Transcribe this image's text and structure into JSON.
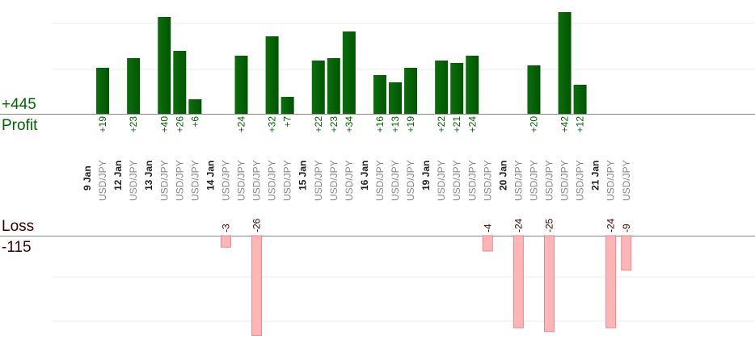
{
  "summary": {
    "profit_total": "+445",
    "profit_label": "Profit",
    "loss_label": "Loss",
    "loss_total": "-115"
  },
  "colors": {
    "profit_bar": "#0c6e0c",
    "profit_bar_dark": "#005500",
    "profit_text": "#006400",
    "loss_bar": "#ffb4b6",
    "loss_bar_edge": "#e58a8d",
    "loss_text": "#3a0000",
    "day_text": "#222222",
    "pair_text": "#888888",
    "grid": "#e8e8e8",
    "axis": "#888888"
  },
  "chart_data": {
    "type": "bar",
    "y_scale_note": "profit bars clipped at top of view; loss bars clipped at bottom",
    "ylim_profit": [
      0,
      40
    ],
    "ylim_loss": [
      -24,
      0
    ],
    "slots": [
      {
        "kind": "day",
        "label": "9 Jan"
      },
      {
        "kind": "trade",
        "pair": "USD/JPY",
        "value": 19,
        "label": "+19"
      },
      {
        "kind": "day",
        "label": "12 Jan"
      },
      {
        "kind": "trade",
        "pair": "USD/JPY",
        "value": 23,
        "label": "+23"
      },
      {
        "kind": "day",
        "label": "13 Jan"
      },
      {
        "kind": "trade",
        "pair": "USD/JPY",
        "value": 40,
        "label": "+40"
      },
      {
        "kind": "trade",
        "pair": "USD/JPY",
        "value": 26,
        "label": "+26"
      },
      {
        "kind": "trade",
        "pair": "USD/JPY",
        "value": 6,
        "label": "+6"
      },
      {
        "kind": "day",
        "label": "14 Jan"
      },
      {
        "kind": "trade",
        "pair": "USD/JPY",
        "value": -3,
        "label": "-3"
      },
      {
        "kind": "trade",
        "pair": "USD/JPY",
        "value": 24,
        "label": "+24"
      },
      {
        "kind": "trade",
        "pair": "USD/JPY",
        "value": -26,
        "label": "-26"
      },
      {
        "kind": "trade",
        "pair": "USD/JPY",
        "value": 32,
        "label": "+32"
      },
      {
        "kind": "trade",
        "pair": "USD/JPY",
        "value": 7,
        "label": "+7"
      },
      {
        "kind": "day",
        "label": "15 Jan"
      },
      {
        "kind": "trade",
        "pair": "USD/JPY",
        "value": 22,
        "label": "+22"
      },
      {
        "kind": "trade",
        "pair": "USD/JPY",
        "value": 23,
        "label": "+23"
      },
      {
        "kind": "trade",
        "pair": "USD/JPY",
        "value": 34,
        "label": "+34"
      },
      {
        "kind": "day",
        "label": "16 Jan"
      },
      {
        "kind": "trade",
        "pair": "USD/JPY",
        "value": 16,
        "label": "+16"
      },
      {
        "kind": "trade",
        "pair": "USD/JPY",
        "value": 13,
        "label": "+13"
      },
      {
        "kind": "trade",
        "pair": "USD/JPY",
        "value": 19,
        "label": "+19"
      },
      {
        "kind": "day",
        "label": "19 Jan"
      },
      {
        "kind": "trade",
        "pair": "USD/JPY",
        "value": 22,
        "label": "+22"
      },
      {
        "kind": "trade",
        "pair": "USD/JPY",
        "value": 21,
        "label": "+21"
      },
      {
        "kind": "trade",
        "pair": "USD/JPY",
        "value": 24,
        "label": "+24"
      },
      {
        "kind": "trade",
        "pair": "USD/JPY",
        "value": -4,
        "label": "-4"
      },
      {
        "kind": "day",
        "label": "20 Jan"
      },
      {
        "kind": "trade",
        "pair": "USD/JPY",
        "value": -24,
        "label": "-24"
      },
      {
        "kind": "trade",
        "pair": "USD/JPY",
        "value": 20,
        "label": "+20"
      },
      {
        "kind": "trade",
        "pair": "USD/JPY",
        "value": -25,
        "label": "-25"
      },
      {
        "kind": "trade",
        "pair": "USD/JPY",
        "value": 42,
        "label": "+42"
      },
      {
        "kind": "trade",
        "pair": "USD/JPY",
        "value": 12,
        "label": "+12"
      },
      {
        "kind": "day",
        "label": "21 Jan"
      },
      {
        "kind": "trade",
        "pair": "USD/JPY",
        "value": -24,
        "label": "-24"
      },
      {
        "kind": "trade",
        "pair": "USD/JPY",
        "value": -9,
        "label": "-9"
      }
    ]
  }
}
